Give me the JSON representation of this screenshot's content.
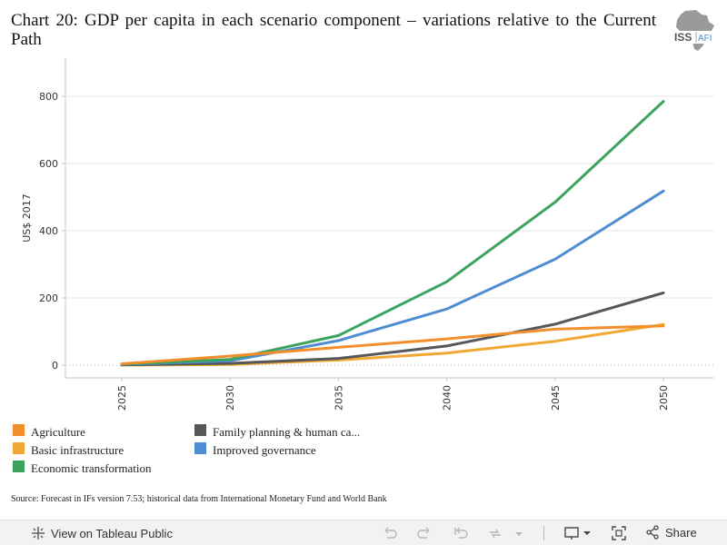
{
  "title": "Chart 20: GDP per capita in each scenario component – variations relative to the Current Path",
  "logo": {
    "text": "ISS",
    "suffix": "AFI"
  },
  "chart_data": {
    "type": "line",
    "ylabel": "US$ 2017",
    "xlabel": "",
    "x": [
      2025,
      2030,
      2035,
      2040,
      2045,
      2050
    ],
    "x_tick_labels": [
      "2025",
      "2030",
      "2035",
      "2040",
      "2045",
      "2050"
    ],
    "ylim": [
      -30,
      900
    ],
    "y_ticks": [
      0,
      200,
      400,
      600,
      800
    ],
    "grid": "horizontal",
    "legend_position": "bottom",
    "series": [
      {
        "name": "Agriculture",
        "color": "#f28e2b",
        "values": [
          4,
          27,
          53,
          78,
          107,
          117
        ]
      },
      {
        "name": "Basic infrastructure",
        "color": "#f0a833",
        "values": [
          0,
          2,
          15,
          36,
          71,
          121
        ]
      },
      {
        "name": "Economic transformation",
        "color": "#3ba35b",
        "values": [
          3,
          17,
          88,
          248,
          485,
          785
        ]
      },
      {
        "name": "Family planning & human ca...",
        "color": "#55575b",
        "values": [
          1,
          5,
          20,
          57,
          122,
          215
        ]
      },
      {
        "name": "Improved governance",
        "color": "#4e8dd1",
        "values": [
          2,
          13,
          73,
          167,
          315,
          518
        ]
      }
    ]
  },
  "legend": [
    {
      "label": "Agriculture",
      "color": "#f28e2b"
    },
    {
      "label": "Basic infrastructure",
      "color": "#f0a833"
    },
    {
      "label": "Economic transformation",
      "color": "#3ba35b"
    },
    {
      "label": "Family planning & human ca...",
      "color": "#55575b"
    },
    {
      "label": "Improved governance",
      "color": "#4e8dd1"
    }
  ],
  "source": "Source: Forecast in IFs version 7.53; historical data from International Monetary Fund and World Bank",
  "footer": {
    "tableau_link": "View on Tableau Public",
    "share_label": "Share",
    "icons": [
      "undo-icon",
      "redo-icon",
      "revert-icon",
      "refresh-icon",
      "pause-icon",
      "download-icon",
      "fullscreen-icon",
      "share-icon"
    ]
  }
}
